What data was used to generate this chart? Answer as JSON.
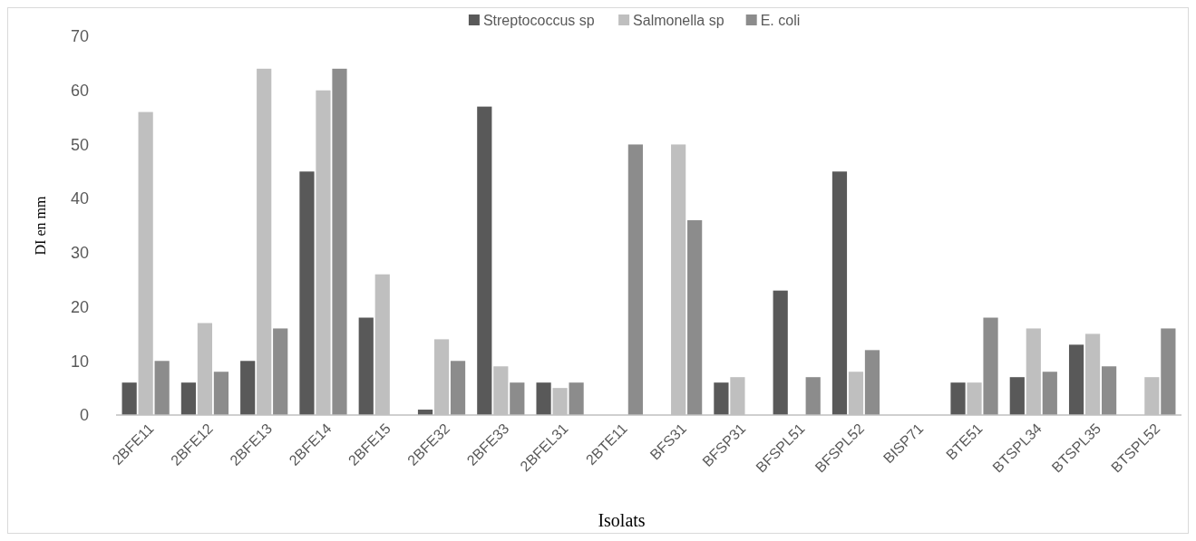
{
  "chart_data": {
    "type": "bar",
    "xlabel": "Isolats",
    "ylabel": "DI en mm",
    "categories": [
      "2BFE11",
      "2BFE12",
      "2BFE13",
      "2BFE14",
      "2BFE15",
      "2BFE32",
      "2BFE33",
      "2BFEL31",
      "2BTE11",
      "BFS31",
      "BFSP31",
      "BFSPL51",
      "BFSPL52",
      "BISP71",
      "BTE51",
      "BTSPL34",
      "BTSPL35",
      "BTSPL52"
    ],
    "series": [
      {
        "name": "Streptococcus sp",
        "color": "#595959",
        "values": [
          6,
          6,
          10,
          45,
          18,
          1,
          57,
          6,
          0,
          0,
          6,
          23,
          45,
          0,
          6,
          7,
          13,
          0
        ]
      },
      {
        "name": "Salmonella sp",
        "color": "#bfbfbf",
        "values": [
          56,
          17,
          64,
          60,
          26,
          14,
          9,
          5,
          0,
          50,
          7,
          0,
          8,
          0,
          6,
          16,
          15,
          7
        ]
      },
      {
        "name": "E. coli",
        "color": "#8c8c8c",
        "values": [
          10,
          8,
          16,
          64,
          0,
          10,
          6,
          6,
          50,
          36,
          0,
          7,
          12,
          0,
          18,
          8,
          9,
          16
        ]
      }
    ],
    "ylim": [
      0,
      70
    ],
    "yticks": [
      0,
      10,
      20,
      30,
      40,
      50,
      60,
      70
    ],
    "grid": false,
    "legend": "top"
  }
}
